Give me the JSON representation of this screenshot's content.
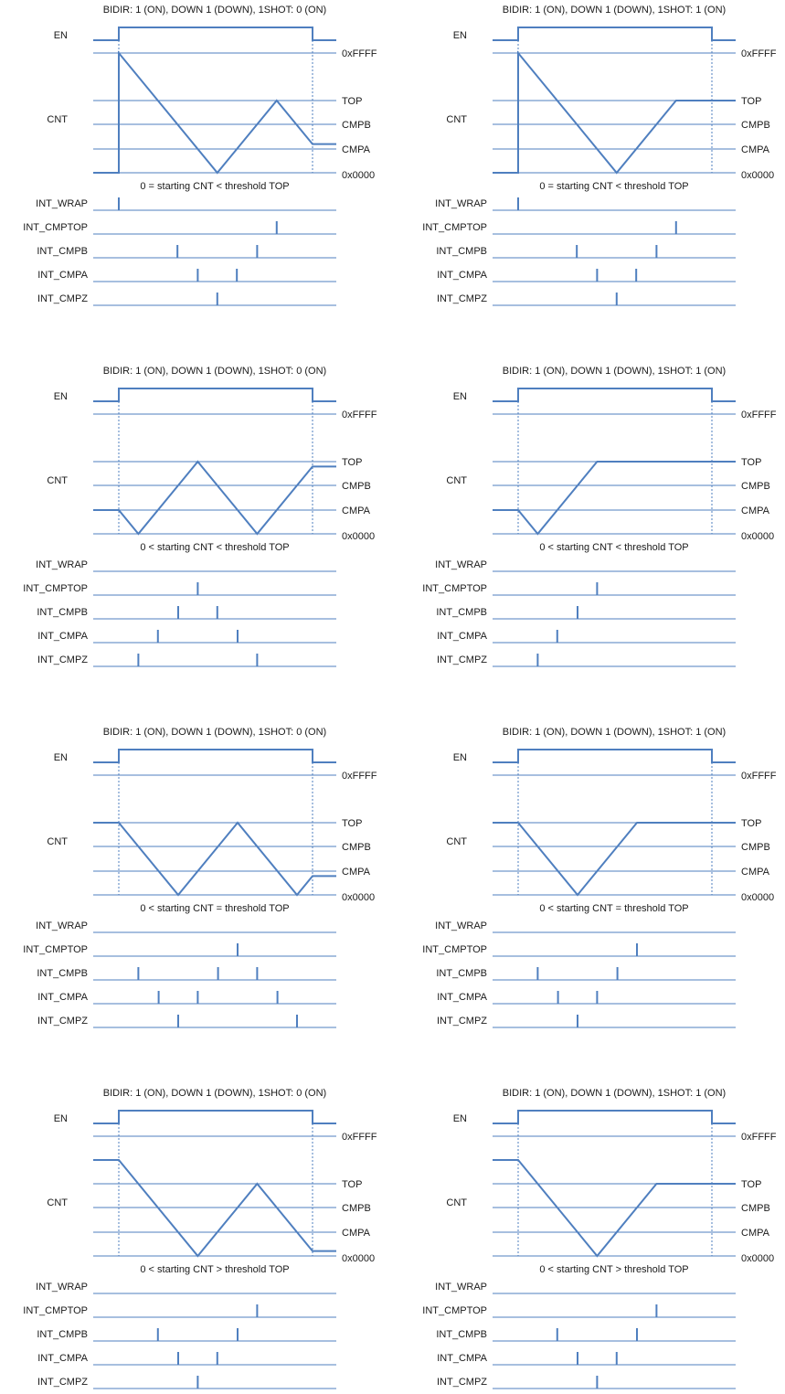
{
  "colors": {
    "signal": "#4f7fbf",
    "text": "#1a1a1a"
  },
  "signal_labels": {
    "en": "EN",
    "cnt": "CNT"
  },
  "level_labels": {
    "ffff": "0xFFFF",
    "top": "TOP",
    "cmpb": "CMPB",
    "cmpa": "CMPA",
    "zero": "0x0000"
  },
  "interrupt_labels": [
    "INT_WRAP",
    "INT_CMPTOP",
    "INT_CMPB",
    "INT_CMPA",
    "INT_CMPZ"
  ],
  "panels": [
    {
      "title": "BIDIR: 1 (ON), DOWN 1 (DOWN), 1SHOT: 0 (ON)",
      "caption": "0 = starting CNT < threshold TOP",
      "start_level": "ffff",
      "pre_level": "zero",
      "first_direction": "down",
      "one_shot": false,
      "wrap_at_start": true
    },
    {
      "title": "BIDIR: 1 (ON), DOWN 1 (DOWN), 1SHOT: 1 (ON)",
      "caption": "0 = starting CNT < threshold TOP",
      "start_level": "ffff",
      "pre_level": "zero",
      "first_direction": "down",
      "one_shot": true,
      "wrap_at_start": true
    },
    {
      "title": "BIDIR: 1 (ON), DOWN 1 (DOWN), 1SHOT: 0 (ON)",
      "caption": "0 < starting CNT < threshold TOP",
      "start_level": "cmpa",
      "pre_level": "cmpa",
      "first_direction": "down",
      "one_shot": false,
      "wrap_at_start": false
    },
    {
      "title": "BIDIR: 1 (ON), DOWN 1 (DOWN), 1SHOT: 1 (ON)",
      "caption": "0 < starting CNT < threshold TOP",
      "start_level": "cmpa",
      "pre_level": "cmpa",
      "first_direction": "down",
      "one_shot": true,
      "wrap_at_start": false
    },
    {
      "title": "BIDIR: 1 (ON), DOWN 1 (DOWN), 1SHOT: 0 (ON)",
      "caption": "0 < starting CNT = threshold TOP",
      "start_level": "top",
      "pre_level": "top",
      "first_direction": "down",
      "one_shot": false,
      "wrap_at_start": false
    },
    {
      "title": "BIDIR: 1 (ON), DOWN 1 (DOWN), 1SHOT: 1 (ON)",
      "caption": "0 < starting CNT = threshold TOP",
      "start_level": "top",
      "pre_level": "top",
      "first_direction": "down",
      "one_shot": true,
      "wrap_at_start": false
    },
    {
      "title": "BIDIR: 1 (ON), DOWN 1 (DOWN), 1SHOT: 0 (ON)",
      "caption": "0 < starting CNT > threshold TOP",
      "start_level": "above_top",
      "pre_level": "above_top",
      "first_direction": "down",
      "one_shot": false,
      "wrap_at_start": false
    },
    {
      "title": "BIDIR: 1 (ON), DOWN 1 (DOWN), 1SHOT: 1 (ON)",
      "caption": "0 < starting CNT > threshold TOP",
      "start_level": "above_top",
      "pre_level": "above_top",
      "first_direction": "down",
      "one_shot": true,
      "wrap_at_start": false
    }
  ]
}
